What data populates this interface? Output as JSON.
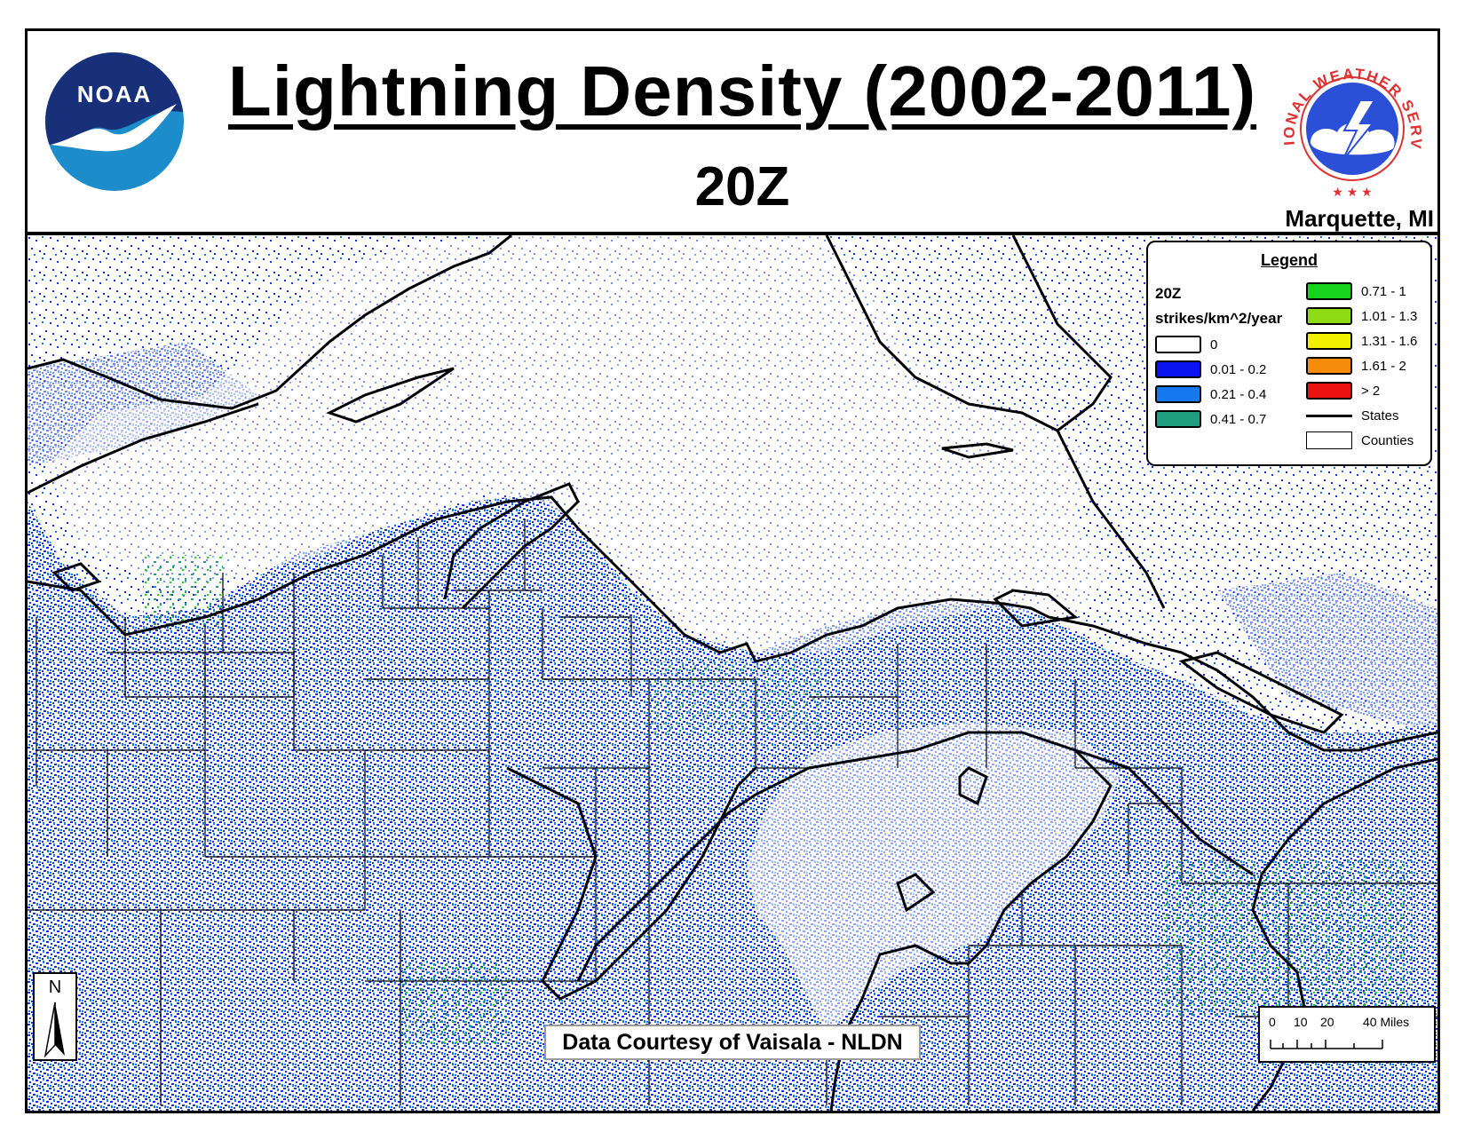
{
  "header": {
    "title": "Lightning Density (2002-2011)",
    "subtitle": "20Z",
    "office": "Marquette, MI",
    "noaa_logo_text": "NOAA",
    "nws_logo_text": "NATIONAL WEATHER SERVICE"
  },
  "legend": {
    "title": "Legend",
    "time": "20Z",
    "units": "strikes/km^2/year",
    "classes": [
      {
        "label": "0",
        "color": "#ffffff"
      },
      {
        "label": "0.01 - 0.2",
        "color": "#0a14f0"
      },
      {
        "label": "0.21 - 0.4",
        "color": "#1478f0"
      },
      {
        "label": "0.41 - 0.7",
        "color": "#1f9e80"
      },
      {
        "label": "0.71 - 1",
        "color": "#19d21e"
      },
      {
        "label": "1.01 - 1.3",
        "color": "#8fdc14"
      },
      {
        "label": "1.31 - 1.6",
        "color": "#f0f000"
      },
      {
        "label": "1.61 - 2",
        "color": "#f58c0a"
      },
      {
        "label": "> 2",
        "color": "#ee1111"
      }
    ],
    "states_label": "States",
    "counties_label": "Counties"
  },
  "credit": "Data Courtesy of Vaisala - NLDN",
  "north_arrow": "N",
  "scale_bar": {
    "ticks": [
      "0",
      "10",
      "20",
      "40 Miles"
    ]
  }
}
